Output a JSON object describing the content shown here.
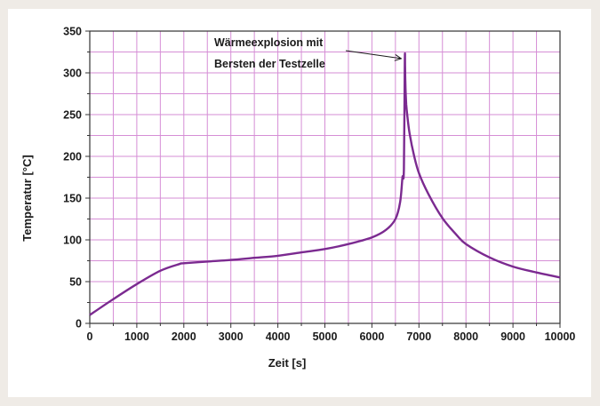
{
  "chart_data": {
    "type": "line",
    "title": "",
    "xlabel": "Zeit [s]",
    "ylabel": "Temperatur [°C]",
    "xlim": [
      0,
      10000
    ],
    "ylim": [
      0,
      350
    ],
    "x_ticks": [
      0,
      1000,
      2000,
      3000,
      4000,
      5000,
      6000,
      7000,
      8000,
      9000,
      10000
    ],
    "y_ticks": [
      0,
      50,
      100,
      150,
      200,
      250,
      300,
      350
    ],
    "x_minor_step": 500,
    "y_minor_step": 25,
    "grid": true,
    "grid_color": "#d68ed6",
    "line_color": "#7b2a90",
    "series": [
      {
        "x": [
          0,
          500,
          1000,
          1500,
          1900,
          2000,
          2500,
          3000,
          3500,
          4000,
          4500,
          5000,
          5500,
          6000,
          6300,
          6500,
          6600,
          6650,
          6680,
          6700,
          6705,
          6710,
          6720,
          6730,
          6750,
          6800,
          6900,
          7000,
          7200,
          7500,
          7800,
          8000,
          8500,
          9000,
          9500,
          10000
        ],
        "y": [
          10,
          29,
          47,
          63,
          71,
          72,
          74,
          76,
          78.5,
          81,
          85,
          89,
          95,
          103,
          112,
          125,
          145,
          175,
          185,
          315,
          308,
          290,
          273,
          262,
          250,
          228,
          200,
          180,
          155,
          126,
          106,
          95,
          79,
          68,
          61,
          55
        ]
      }
    ],
    "annotation": {
      "lines": [
        "Wärmeexplosion mit",
        "Bersten der Testzelle"
      ],
      "x": 6700,
      "y": 315
    }
  }
}
